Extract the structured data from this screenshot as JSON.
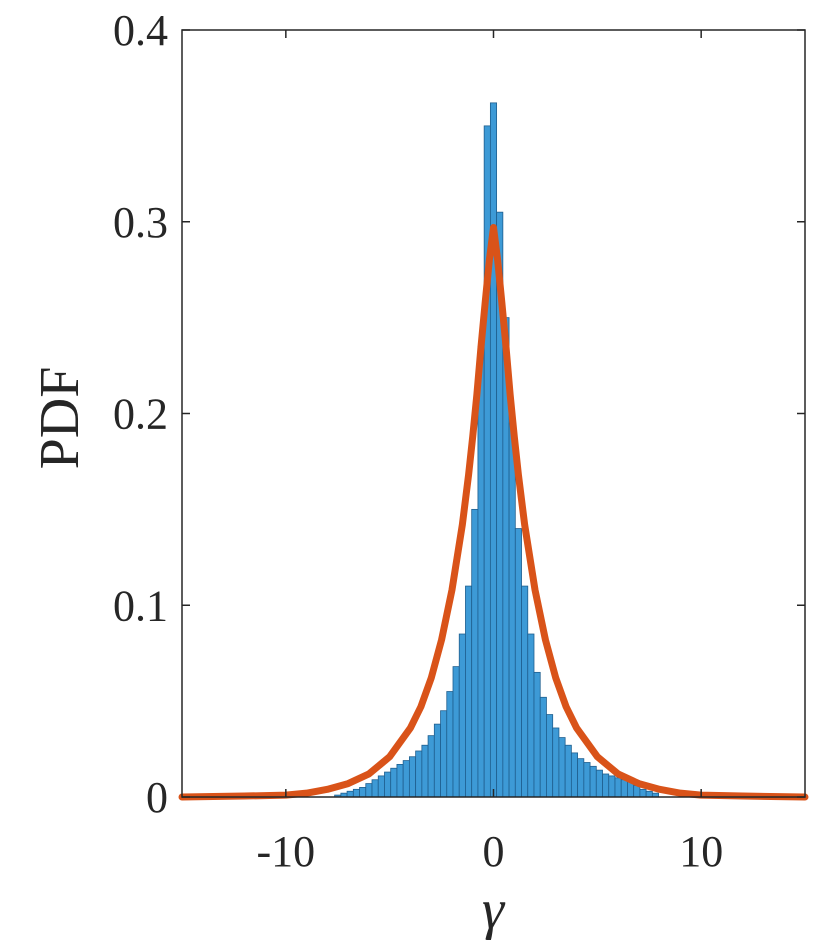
{
  "chart_data": {
    "type": "bar",
    "title": "",
    "xlabel": "γ",
    "ylabel": "PDF",
    "xlim": [
      -15,
      15
    ],
    "ylim": [
      0,
      0.4
    ],
    "grid": false,
    "x_ticks": [
      -10,
      0,
      10
    ],
    "x_tick_labels": [
      "-10",
      "0",
      "10"
    ],
    "y_ticks": [
      0,
      0.1,
      0.2,
      0.3,
      0.4
    ],
    "y_tick_labels": [
      "0",
      "0.1",
      "0.2",
      "0.3",
      "0.4"
    ],
    "colors": {
      "histogram": "#3d9ad6",
      "histogram_edge": "#1f5f8f",
      "fit": "#d95319",
      "axes": "#262626"
    },
    "series": [
      {
        "type": "histogram",
        "bin_width": 0.3,
        "bins_center": [
          -7.5,
          -7.2,
          -6.9,
          -6.6,
          -6.3,
          -6.0,
          -5.7,
          -5.4,
          -5.1,
          -4.8,
          -4.5,
          -4.2,
          -3.9,
          -3.6,
          -3.3,
          -3.0,
          -2.7,
          -2.4,
          -2.1,
          -1.8,
          -1.5,
          -1.2,
          -0.9,
          -0.6,
          -0.3,
          0.0,
          0.3,
          0.6,
          0.9,
          1.2,
          1.5,
          1.8,
          2.1,
          2.4,
          2.7,
          3.0,
          3.3,
          3.6,
          3.9,
          4.2,
          4.5,
          4.8,
          5.1,
          5.4,
          5.7,
          6.0,
          6.3,
          6.6,
          6.9,
          7.2,
          7.5,
          7.8
        ],
        "values": [
          0.001,
          0.002,
          0.003,
          0.004,
          0.005,
          0.007,
          0.009,
          0.011,
          0.013,
          0.015,
          0.017,
          0.019,
          0.021,
          0.024,
          0.027,
          0.032,
          0.038,
          0.045,
          0.055,
          0.068,
          0.085,
          0.11,
          0.15,
          0.235,
          0.35,
          0.362,
          0.305,
          0.25,
          0.195,
          0.14,
          0.11,
          0.085,
          0.065,
          0.052,
          0.043,
          0.036,
          0.031,
          0.027,
          0.023,
          0.02,
          0.018,
          0.016,
          0.014,
          0.012,
          0.011,
          0.01,
          0.009,
          0.008,
          0.006,
          0.004,
          0.003,
          0.002
        ]
      },
      {
        "type": "line",
        "x": [
          -15,
          -12,
          -10,
          -9,
          -8,
          -7,
          -6,
          -5,
          -4,
          -3.5,
          -3,
          -2.5,
          -2,
          -1.5,
          -1.2,
          -1,
          -0.8,
          -0.6,
          -0.4,
          -0.2,
          0,
          0.2,
          0.4,
          0.6,
          0.8,
          1,
          1.2,
          1.5,
          2,
          2.5,
          3,
          3.5,
          4,
          5,
          6,
          7,
          8,
          9,
          10,
          12,
          15
        ],
        "y": [
          0.0,
          0.0005,
          0.001,
          0.002,
          0.004,
          0.007,
          0.012,
          0.021,
          0.036,
          0.047,
          0.062,
          0.082,
          0.108,
          0.142,
          0.168,
          0.188,
          0.21,
          0.235,
          0.258,
          0.28,
          0.297,
          0.28,
          0.258,
          0.235,
          0.21,
          0.188,
          0.168,
          0.142,
          0.108,
          0.082,
          0.062,
          0.047,
          0.036,
          0.021,
          0.012,
          0.007,
          0.004,
          0.002,
          0.001,
          0.0005,
          0.0
        ]
      }
    ]
  }
}
